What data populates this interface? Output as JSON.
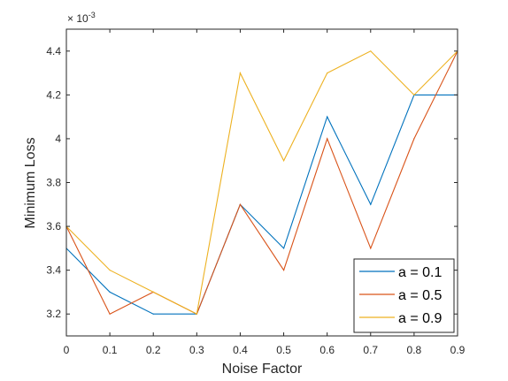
{
  "chart_data": {
    "type": "line",
    "xlabel": "Noise Factor",
    "ylabel": "Minimum Loss",
    "exponent_label": "× 10",
    "exponent_power": "-3",
    "x": [
      0,
      0.1,
      0.2,
      0.3,
      0.4,
      0.5,
      0.6,
      0.7,
      0.8,
      0.9
    ],
    "xlim": [
      0,
      0.9
    ],
    "ylim": [
      3.1,
      4.5
    ],
    "xticks": [
      0,
      0.1,
      0.2,
      0.3,
      0.4,
      0.5,
      0.6,
      0.7,
      0.8,
      0.9
    ],
    "xtick_labels": [
      "0",
      "0.1",
      "0.2",
      "0.3",
      "0.4",
      "0.5",
      "0.6",
      "0.7",
      "0.8",
      "0.9"
    ],
    "yticks": [
      3.2,
      3.4,
      3.6,
      3.8,
      4.0,
      4.2,
      4.4
    ],
    "ytick_labels": [
      "3.2",
      "3.4",
      "3.6",
      "3.8",
      "4",
      "4.2",
      "4.4"
    ],
    "series": [
      {
        "name": "a = 0.1",
        "color": "#0072BD",
        "values": [
          3.5,
          3.3,
          3.2,
          3.2,
          3.7,
          3.5,
          4.1,
          3.7,
          4.2,
          4.2
        ]
      },
      {
        "name": "a = 0.5",
        "color": "#D95319",
        "values": [
          3.6,
          3.2,
          3.3,
          3.2,
          3.7,
          3.4,
          4.0,
          3.5,
          4.0,
          4.4
        ]
      },
      {
        "name": "a = 0.9",
        "color": "#EDB120",
        "values": [
          3.6,
          3.4,
          3.3,
          3.2,
          4.3,
          3.9,
          4.3,
          4.4,
          4.2,
          4.4
        ]
      }
    ],
    "grid": false,
    "legend_position": "bottom-right"
  }
}
